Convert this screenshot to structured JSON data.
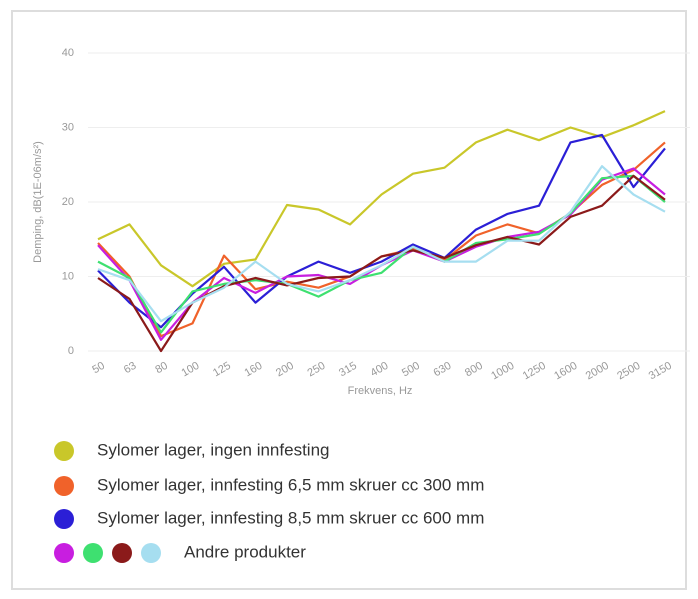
{
  "chart_data": {
    "type": "line",
    "y_label": "Demping, dB(1E-06m/s²)",
    "x_label": "Frekvens, Hz",
    "categories": [
      "50",
      "63",
      "80",
      "100",
      "125",
      "160",
      "200",
      "250",
      "315",
      "400",
      "500",
      "630",
      "800",
      "1000",
      "1250",
      "1600",
      "2000",
      "2500",
      "3150"
    ],
    "ylim": [
      0,
      40
    ],
    "yticks": [
      0,
      10,
      20,
      30,
      40
    ],
    "grid": true,
    "series": [
      {
        "color": "#c9c72a",
        "values": [
          15,
          17,
          11.5,
          8.7,
          11.7,
          12.3,
          19.6,
          19,
          17,
          21,
          23.8,
          24.6,
          28,
          29.7,
          28.3,
          30,
          28.7,
          30.3,
          32.2
        ]
      },
      {
        "color": "#f0622a",
        "values": [
          14.5,
          10,
          2,
          3.7,
          12.8,
          8.3,
          9.3,
          8.5,
          10,
          12.7,
          13.7,
          12.2,
          15.5,
          17,
          15.8,
          18.5,
          22.3,
          24.3,
          28
        ]
      },
      {
        "color": "#2b1fd6",
        "values": [
          10.8,
          6.5,
          3.2,
          7.7,
          11.3,
          6.5,
          10,
          12,
          10.5,
          12,
          14.3,
          12.5,
          16.3,
          18.4,
          19.5,
          28,
          29,
          22,
          27.2
        ]
      },
      {
        "color": "#c81ee0",
        "values": [
          14.2,
          9.5,
          1.5,
          6.5,
          9.8,
          7.8,
          10,
          10.2,
          9,
          11.5,
          13.5,
          12,
          14,
          15.3,
          16,
          18.3,
          23,
          24.5,
          21
        ]
      },
      {
        "color": "#3ee070",
        "values": [
          12,
          9.8,
          2.5,
          8,
          9,
          9.5,
          9,
          7.3,
          9.5,
          10.5,
          14,
          12,
          14.5,
          15,
          15.7,
          18.5,
          23.2,
          23.5,
          20
        ]
      },
      {
        "color": "#8b1a1a",
        "values": [
          9.8,
          7,
          0,
          6.5,
          8.7,
          9.8,
          8.8,
          9.8,
          10,
          12.7,
          13.5,
          12.5,
          14.2,
          15.3,
          14.3,
          18,
          19.5,
          23.5,
          20.3
        ]
      },
      {
        "color": "#a6def0",
        "values": [
          11,
          9.5,
          4,
          6.5,
          8.5,
          12,
          9,
          8,
          9.5,
          11.5,
          14,
          12,
          12,
          14.8,
          14.8,
          18.7,
          24.8,
          21,
          18.7
        ]
      }
    ],
    "legend": [
      {
        "label": "Sylomer lager, ingen innfesting",
        "colors": [
          "#c9c72a"
        ]
      },
      {
        "label": "Sylomer lager, innfesting 6,5 mm skruer cc 300 mm",
        "colors": [
          "#f0622a"
        ]
      },
      {
        "label": "Sylomer lager, innfesting 8,5 mm skruer cc 600 mm",
        "colors": [
          "#2b1fd6"
        ]
      },
      {
        "label": "Andre produkter",
        "colors": [
          "#c81ee0",
          "#3ee070",
          "#8b1a1a",
          "#a6def0"
        ]
      }
    ]
  }
}
